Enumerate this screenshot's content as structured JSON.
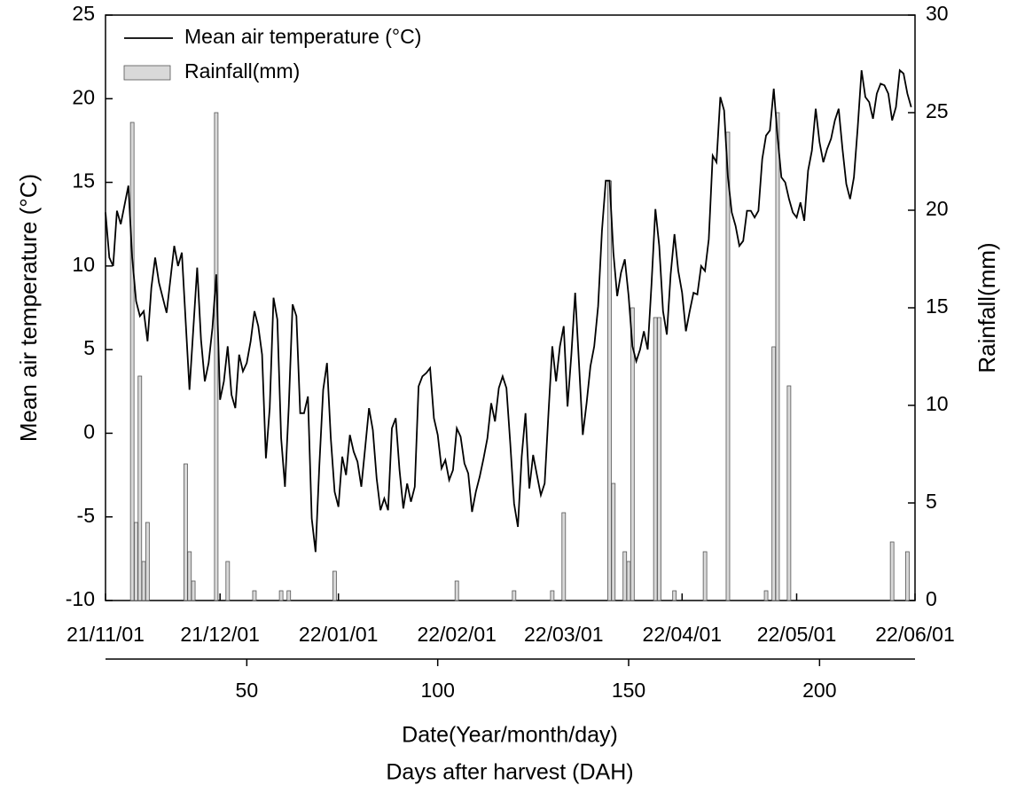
{
  "chart_data": {
    "type": "combo",
    "xlabel": "Date(Year/month/day)",
    "x2label": "Days after harvest (DAH)",
    "ylabel": "Mean air temperature (°C)",
    "y2label": "Rainfall(mm)",
    "xlim": [
      13,
      225
    ],
    "xticks": [
      {
        "value": 13,
        "label": "21/11/01"
      },
      {
        "value": 43,
        "label": "21/12/01"
      },
      {
        "value": 74,
        "label": "22/01/01"
      },
      {
        "value": 105,
        "label": "22/02/01"
      },
      {
        "value": 133,
        "label": "22/03/01"
      },
      {
        "value": 164,
        "label": "22/04/01"
      },
      {
        "value": 194,
        "label": "22/05/01"
      },
      {
        "value": 225,
        "label": "22/06/01"
      }
    ],
    "x2ticks": [
      50,
      100,
      150,
      200
    ],
    "ylim": [
      -10,
      25
    ],
    "yticks": [
      -10,
      -5,
      0,
      5,
      10,
      15,
      20,
      25
    ],
    "y2lim": [
      0,
      30
    ],
    "y2ticks": [
      0,
      5,
      10,
      15,
      20,
      25,
      30
    ],
    "legend": "top-left",
    "series": [
      {
        "name": "Mean air temperature (°C)",
        "type": "line",
        "color": "#000000",
        "x": [
          13,
          14,
          15,
          16,
          17,
          19,
          20,
          21,
          22,
          23,
          24,
          25,
          26,
          27,
          29,
          31,
          32,
          33,
          35,
          37,
          38,
          39,
          40,
          41,
          42,
          43,
          44,
          45,
          46,
          47,
          48,
          49,
          50,
          51,
          52,
          53,
          54,
          55,
          56,
          57,
          58,
          59,
          60,
          61,
          62,
          63,
          64,
          65,
          66,
          67,
          68,
          69,
          70,
          71,
          72,
          73,
          74,
          75,
          76,
          77,
          78,
          79,
          80,
          81,
          82,
          83,
          84,
          85,
          86,
          87,
          88,
          89,
          90,
          91,
          92,
          93,
          94,
          95,
          96,
          97,
          98,
          99,
          100,
          101,
          102,
          103,
          104,
          105,
          106,
          107,
          108,
          109,
          110,
          111,
          112,
          113,
          114,
          115,
          116,
          117,
          118,
          119,
          120,
          121,
          122,
          123,
          124,
          125,
          126,
          127,
          128,
          129,
          130,
          131,
          132,
          133,
          134,
          135,
          136,
          137,
          138,
          139,
          140,
          141,
          142,
          143,
          144,
          145,
          146,
          147,
          148,
          149,
          150,
          151,
          152,
          153,
          154,
          155,
          156,
          157,
          158,
          159,
          160,
          161,
          162,
          163,
          164,
          165,
          166,
          167,
          168,
          169,
          170,
          171,
          172,
          173,
          174,
          175,
          176,
          177,
          178,
          179,
          180,
          181,
          182,
          183,
          184,
          185,
          186,
          187,
          188,
          189,
          190,
          191,
          192,
          193,
          194,
          195,
          196,
          197,
          198,
          199,
          200,
          201,
          202,
          203,
          204,
          205,
          206,
          207,
          208,
          209,
          210,
          211,
          212,
          213,
          214,
          215,
          216,
          217,
          218,
          219,
          220,
          221,
          222,
          223,
          224
        ],
        "values": [
          13.2,
          10.5,
          10.0,
          13.3,
          12.5,
          14.8,
          10.5,
          7.9,
          7.0,
          7.3,
          5.5,
          8.7,
          10.5,
          9.0,
          7.2,
          11.2,
          10.0,
          10.8,
          2.6,
          9.9,
          5.6,
          3.1,
          4.2,
          6.3,
          9.5,
          2.0,
          3.1,
          5.2,
          2.3,
          1.5,
          4.7,
          3.7,
          4.2,
          5.5,
          7.3,
          6.4,
          4.7,
          -1.5,
          1.5,
          8.1,
          6.8,
          -0.3,
          -3.2,
          1.6,
          7.7,
          7.0,
          1.2,
          1.2,
          2.2,
          -5.1,
          -7.1,
          -1.9,
          2.6,
          4.2,
          -0.3,
          -3.5,
          -4.4,
          -1.4,
          -2.5,
          -0.1,
          -1.1,
          -1.7,
          -3.2,
          -0.9,
          1.5,
          0.2,
          -2.7,
          -4.6,
          -3.9,
          -4.6,
          0.3,
          0.9,
          -2.2,
          -4.5,
          -3.0,
          -4.1,
          -3.2,
          2.8,
          3.4,
          3.6,
          3.9,
          0.9,
          -0.1,
          -2.1,
          -1.6,
          -2.8,
          -2.2,
          0.3,
          -0.2,
          -1.8,
          -2.4,
          -4.7,
          -3.5,
          -2.6,
          -1.5,
          -0.3,
          1.8,
          0.7,
          2.7,
          3.4,
          2.7,
          -0.6,
          -4.2,
          -5.6,
          -1.4,
          1.2,
          -3.3,
          -1.3,
          -2.5,
          -3.7,
          -3.0,
          1.2,
          5.2,
          3.1,
          5.2,
          6.4,
          1.6,
          4.7,
          8.4,
          4.2,
          -0.1,
          1.8,
          4.0,
          5.2,
          7.6,
          12.1,
          15.1,
          15.1,
          10.8,
          8.2,
          9.6,
          10.4,
          8.2,
          5.2,
          4.3,
          5.0,
          6.1,
          5.0,
          8.9,
          13.4,
          11.2,
          7.3,
          5.9,
          9.5,
          11.9,
          9.7,
          8.4,
          6.1,
          7.3,
          8.4,
          8.3,
          10.0,
          9.7,
          11.6,
          16.6,
          16.2,
          20.1,
          19.3,
          15.3,
          13.2,
          12.4,
          11.2,
          11.5,
          13.3,
          13.3,
          12.9,
          13.3,
          16.4,
          17.8,
          18.1,
          20.6,
          17.7,
          15.3,
          15.0,
          14.0,
          13.2,
          12.9,
          13.8,
          12.7,
          15.7,
          16.9,
          19.4,
          17.4,
          16.2,
          17.0,
          17.6,
          18.7,
          19.4,
          17.0,
          14.9,
          14.0,
          15.3,
          18.3,
          21.7,
          20.1,
          19.8,
          18.8,
          20.3,
          20.9,
          20.8,
          20.3,
          18.7,
          19.5,
          21.7,
          21.5,
          20.3,
          19.5
        ]
      },
      {
        "name": "Rainfall(mm)",
        "type": "bar",
        "axis": "y2",
        "color": "#d9d9d9",
        "x": [
          20,
          21,
          22,
          23,
          24,
          34,
          35,
          36,
          42,
          45,
          52,
          59,
          61,
          73,
          105,
          120,
          130,
          133,
          145,
          146,
          149,
          150,
          151,
          157,
          158,
          162,
          170,
          176,
          186,
          188,
          189,
          192,
          219,
          223
        ],
        "values": [
          24.5,
          4.0,
          11.5,
          2.0,
          4.0,
          7.0,
          2.5,
          1.0,
          25.0,
          2.0,
          0.5,
          0.5,
          0.5,
          1.5,
          1.0,
          0.5,
          0.5,
          4.5,
          21.5,
          6.0,
          2.5,
          2.0,
          15.0,
          14.5,
          14.5,
          0.5,
          2.5,
          24.0,
          0.5,
          13.0,
          25.0,
          11.0,
          3.0,
          2.5
        ]
      }
    ]
  }
}
